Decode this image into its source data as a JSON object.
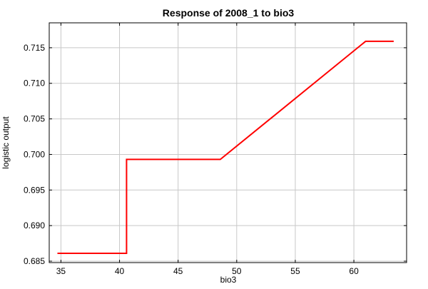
{
  "chart_data": {
    "type": "line",
    "title": "Response of 2008_1 to bio3",
    "xlabel": "bio3",
    "ylabel": "logistic output",
    "xlim": [
      34,
      64.5
    ],
    "ylim": [
      0.6848,
      0.7185
    ],
    "x_ticks": [
      35,
      40,
      45,
      50,
      55,
      60
    ],
    "x_tick_labels": [
      "35",
      "40",
      "45",
      "50",
      "55",
      "60"
    ],
    "y_ticks": [
      0.685,
      0.69,
      0.695,
      0.7,
      0.705,
      0.71,
      0.715
    ],
    "y_tick_labels": [
      "0.685",
      "0.690",
      "0.695",
      "0.700",
      "0.705",
      "0.710",
      "0.715"
    ],
    "grid": true,
    "series": [
      {
        "color": "#ff0000",
        "x": [
          34.7,
          40.6,
          40.6,
          48.6,
          61.0,
          63.4
        ],
        "y": [
          0.6861,
          0.6861,
          0.6993,
          0.6993,
          0.7159,
          0.7159
        ]
      }
    ]
  }
}
